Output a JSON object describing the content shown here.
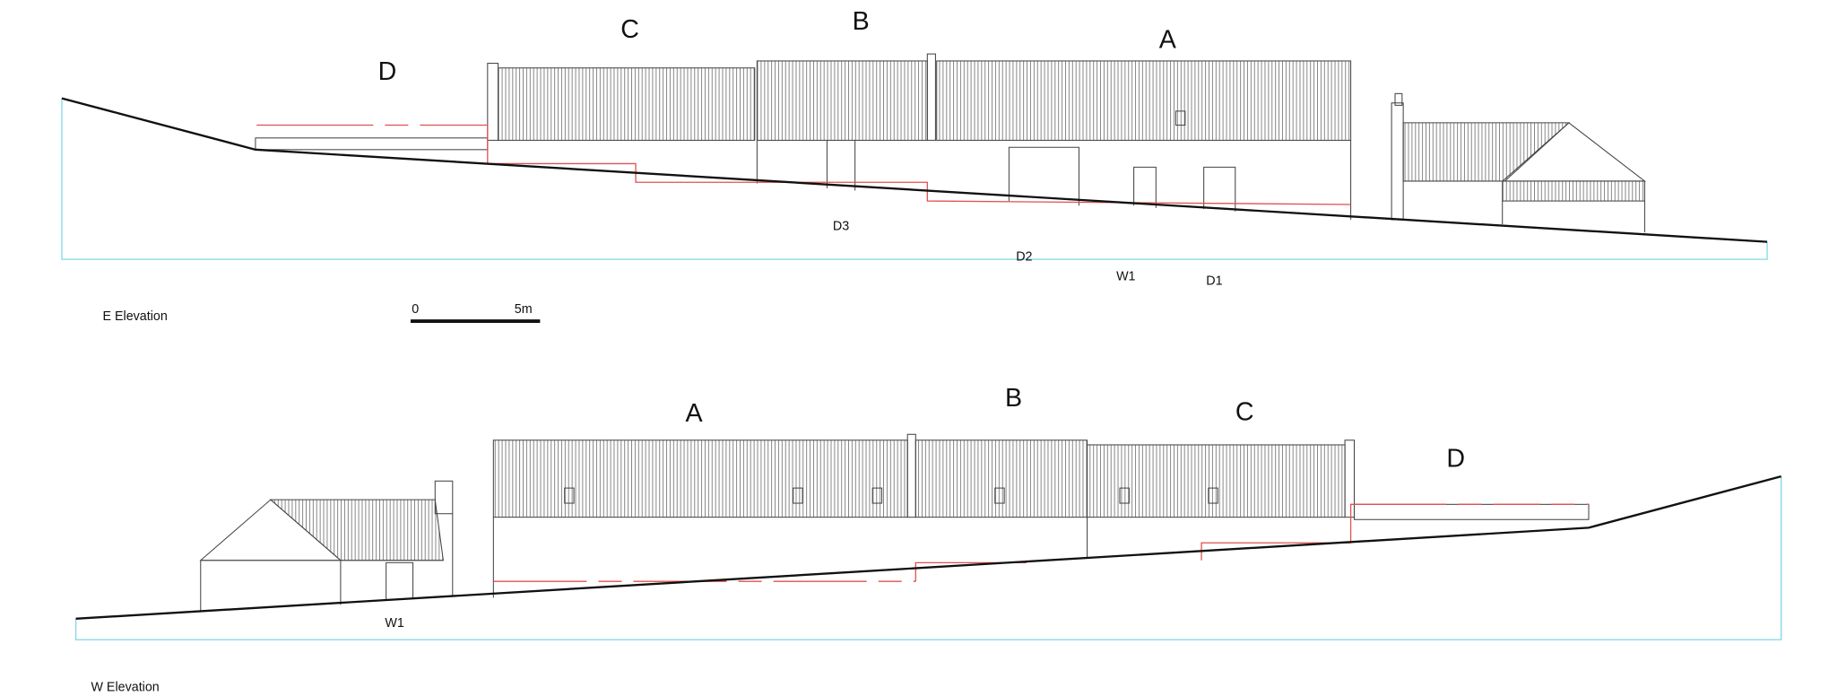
{
  "east_elevation": {
    "title": "E Elevation",
    "sections": [
      "D",
      "C",
      "B",
      "A"
    ],
    "openings": [
      "D3",
      "D2",
      "W1",
      "D1"
    ]
  },
  "scale_bar": {
    "start": "0",
    "end": "5m"
  },
  "west_elevation": {
    "title": "W Elevation",
    "sections": [
      "A",
      "B",
      "C",
      "D"
    ],
    "openings": [
      "W1"
    ]
  }
}
